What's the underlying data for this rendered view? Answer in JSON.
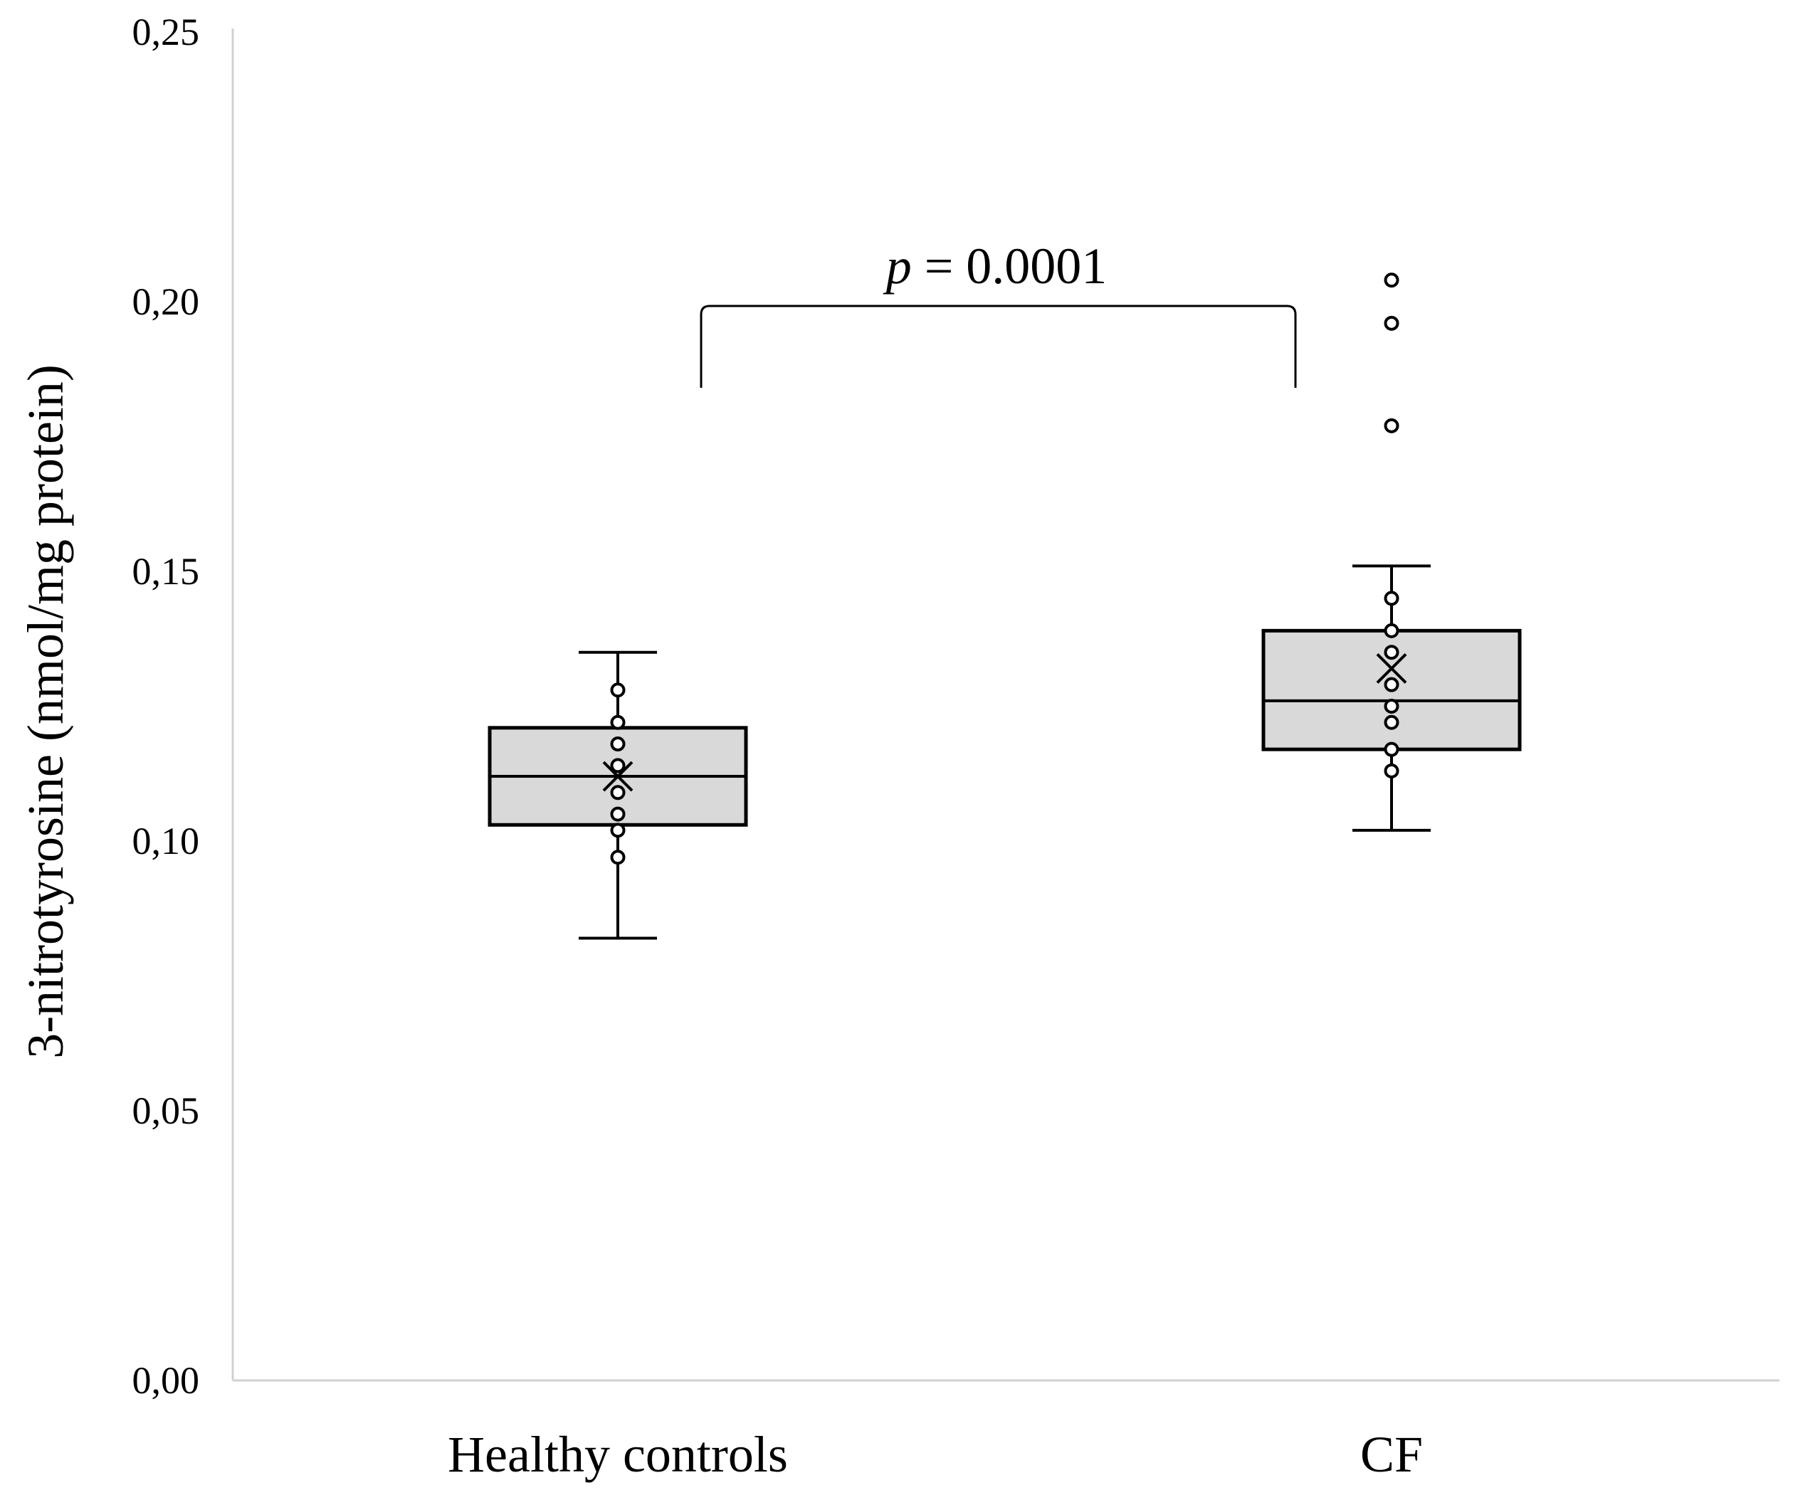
{
  "chart_data": {
    "type": "box",
    "title": "",
    "xlabel": "",
    "ylabel": "3-nitrotyrosine (nmol/mg protein)",
    "ylim": [
      0,
      0.25
    ],
    "yticks": [
      0,
      0.05,
      0.1,
      0.15,
      0.2,
      0.25
    ],
    "ytick_labels": [
      "0,00",
      "0,05",
      "0,10",
      "0,15",
      "0,20",
      "0,25"
    ],
    "grid": false,
    "categories": [
      "Healthy controls",
      "CF"
    ],
    "series": [
      {
        "name": "Healthy controls",
        "whisker_low": 0.082,
        "q1": 0.103,
        "median": 0.112,
        "q3": 0.121,
        "whisker_high": 0.135,
        "mean": 0.112,
        "points": [
          0.097,
          0.102,
          0.105,
          0.109,
          0.114,
          0.118,
          0.122,
          0.128
        ],
        "outliers": []
      },
      {
        "name": "CF",
        "whisker_low": 0.102,
        "q1": 0.117,
        "median": 0.126,
        "q3": 0.139,
        "whisker_high": 0.151,
        "mean": 0.132,
        "points": [
          0.113,
          0.117,
          0.122,
          0.125,
          0.129,
          0.135,
          0.139,
          0.145
        ],
        "outliers": [
          0.177,
          0.196,
          0.204
        ]
      }
    ],
    "annotations": [
      {
        "text_italic": "p",
        "text_rest": " = 0.0001",
        "between": [
          "Healthy controls",
          "CF"
        ]
      }
    ],
    "colors": {
      "box_fill": "#d9d9d9",
      "stroke": "#000000",
      "axis": "#d0d0d0",
      "point_fill": "#ffffff"
    }
  }
}
